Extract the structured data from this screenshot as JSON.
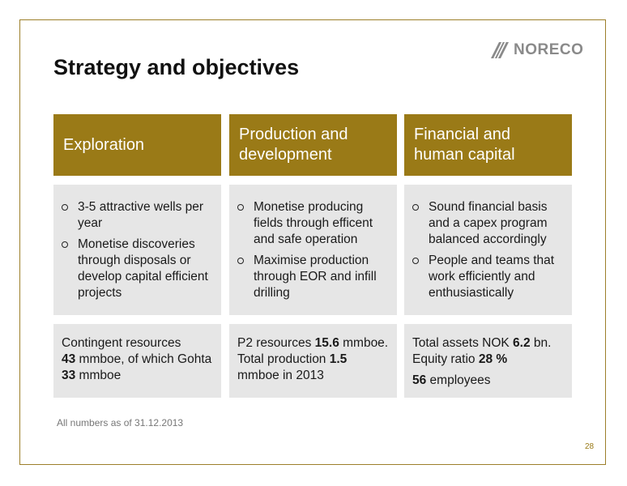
{
  "logo": {
    "text": "NORECO"
  },
  "title": "Strategy and objectives",
  "columns": [
    {
      "header": "Exploration",
      "bullets": [
        "3-5 attractive wells per year",
        "Monetise discoveries through disposals or develop capital efficient projects"
      ]
    },
    {
      "header": "Production and development",
      "bullets": [
        "Monetise producing fields through efficent and safe operation",
        "Maximise production through EOR and infill drilling"
      ]
    },
    {
      "header": "Financial and human capital",
      "bullets": [
        "Sound financial basis and a capex program balanced accordingly",
        "People and teams that work efficiently and enthusiastically"
      ]
    }
  ],
  "footer": {
    "exploration": {
      "t1": "Contingent resources",
      "v1": "43",
      "t2": " mmboe, of which Gohta ",
      "v2": "33",
      "t3": " mmboe"
    },
    "production": {
      "t1": "P2 resources ",
      "v1": "15.6",
      "t2": " mmboe. Total production ",
      "v2": "1.5",
      "t3": " mmboe in 2013"
    },
    "financial": {
      "t1": "Total assets NOK ",
      "v1": "6.2",
      "t2": " bn. Equity ratio ",
      "v2": "28 %",
      "v3": "56",
      "t3": " employees"
    }
  },
  "note": "All numbers as of 31.12.2013",
  "page_number": "28",
  "colors": {
    "accent": "#9a7a17",
    "panel": "#e6e6e6",
    "frame": "#9c7f2a"
  }
}
